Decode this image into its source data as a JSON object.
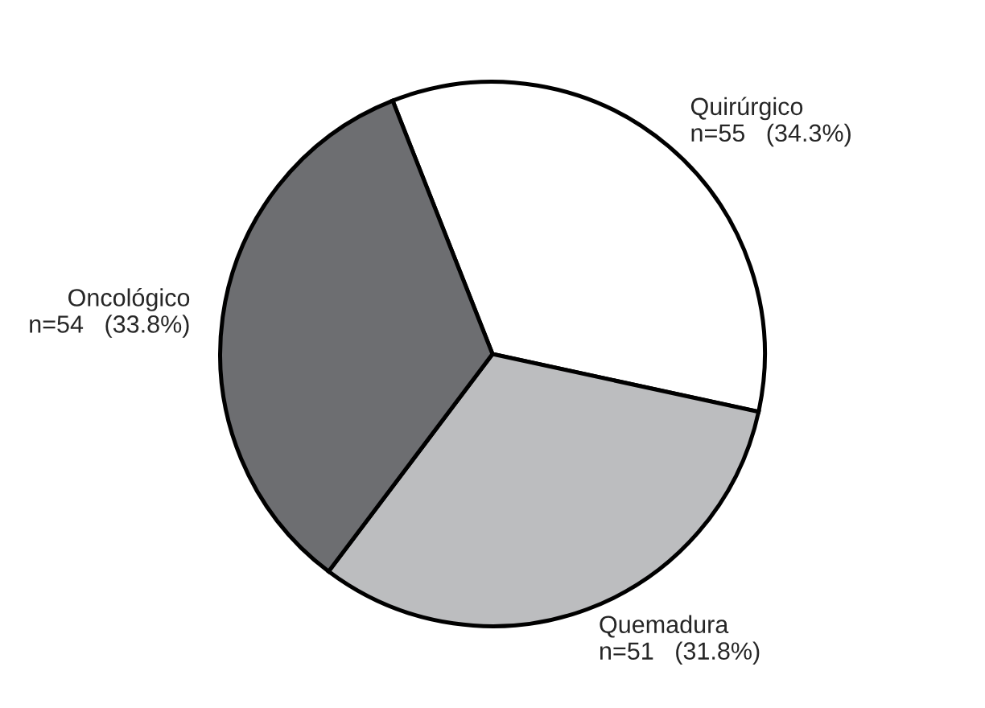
{
  "chart_data": {
    "type": "pie",
    "categories": [
      "Quirúrgico",
      "Quemadura",
      "Oncológico"
    ],
    "values": [
      55,
      51,
      54
    ],
    "value_labels": [
      "n=55   (34.3%)",
      "n=51   (31.8%)",
      "n=54   (33.8%)"
    ],
    "colors": [
      "#ffffff",
      "#bcbdbf",
      "#6d6e71"
    ]
  }
}
